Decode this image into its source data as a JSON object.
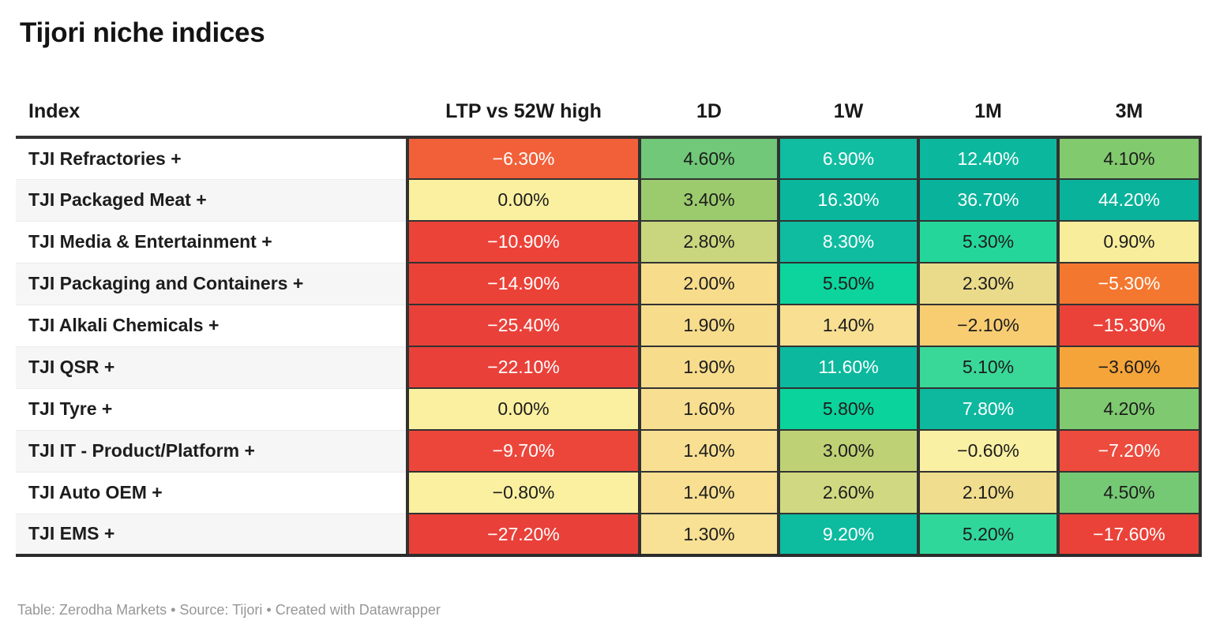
{
  "title": "Tijori niche indices",
  "table": {
    "columns": [
      {
        "label": "Index"
      },
      {
        "label": "LTP vs 52W high"
      },
      {
        "label": "1D"
      },
      {
        "label": "1W"
      },
      {
        "label": "1M"
      },
      {
        "label": "3M"
      }
    ],
    "rows": [
      {
        "label": "TJI Refractories +",
        "cells": [
          {
            "text": "−6.30%",
            "bg": "#f2603a",
            "fg": "#ffffff"
          },
          {
            "text": "4.60%",
            "bg": "#70c878",
            "fg": "#1c1c1c"
          },
          {
            "text": "6.90%",
            "bg": "#10bda1",
            "fg": "#ffffff"
          },
          {
            "text": "12.40%",
            "bg": "#0bb89d",
            "fg": "#ffffff"
          },
          {
            "text": "4.10%",
            "bg": "#82ca6e",
            "fg": "#1c1c1c"
          }
        ]
      },
      {
        "label": "TJI Packaged Meat +",
        "cells": [
          {
            "text": "0.00%",
            "bg": "#fbf0a0",
            "fg": "#1c1c1c"
          },
          {
            "text": "3.40%",
            "bg": "#9ccb6e",
            "fg": "#1c1c1c"
          },
          {
            "text": "16.30%",
            "bg": "#0ab69c",
            "fg": "#ffffff"
          },
          {
            "text": "36.70%",
            "bg": "#09b29a",
            "fg": "#ffffff"
          },
          {
            "text": "44.20%",
            "bg": "#09b29a",
            "fg": "#ffffff"
          }
        ]
      },
      {
        "label": "TJI Media & Entertainment +",
        "cells": [
          {
            "text": "−10.90%",
            "bg": "#ec4339",
            "fg": "#ffffff"
          },
          {
            "text": "2.80%",
            "bg": "#c9d67e",
            "fg": "#1c1c1c"
          },
          {
            "text": "8.30%",
            "bg": "#0fbca0",
            "fg": "#ffffff"
          },
          {
            "text": "5.30%",
            "bg": "#25d69b",
            "fg": "#1c1c1c"
          },
          {
            "text": "0.90%",
            "bg": "#f8ed9b",
            "fg": "#1c1c1c"
          }
        ]
      },
      {
        "label": "TJI Packaging and Containers +",
        "cells": [
          {
            "text": "−14.90%",
            "bg": "#eb4238",
            "fg": "#ffffff"
          },
          {
            "text": "2.00%",
            "bg": "#f7dc8c",
            "fg": "#1c1c1c"
          },
          {
            "text": "5.50%",
            "bg": "#0cd49c",
            "fg": "#1c1c1c"
          },
          {
            "text": "2.30%",
            "bg": "#eadb8b",
            "fg": "#1c1c1c"
          },
          {
            "text": "−5.30%",
            "bg": "#f4772f",
            "fg": "#ffffff"
          }
        ]
      },
      {
        "label": "TJI Alkali Chemicals +",
        "cells": [
          {
            "text": "−25.40%",
            "bg": "#e9413a",
            "fg": "#ffffff"
          },
          {
            "text": "1.90%",
            "bg": "#f7dc8c",
            "fg": "#1c1c1c"
          },
          {
            "text": "1.40%",
            "bg": "#f8df92",
            "fg": "#1c1c1c"
          },
          {
            "text": "−2.10%",
            "bg": "#f8cd72",
            "fg": "#1c1c1c"
          },
          {
            "text": "−15.30%",
            "bg": "#ea4239",
            "fg": "#ffffff"
          }
        ]
      },
      {
        "label": "TJI QSR +",
        "cells": [
          {
            "text": "−22.10%",
            "bg": "#e9413a",
            "fg": "#ffffff"
          },
          {
            "text": "1.90%",
            "bg": "#f7dc8c",
            "fg": "#1c1c1c"
          },
          {
            "text": "11.60%",
            "bg": "#0cb89e",
            "fg": "#ffffff"
          },
          {
            "text": "5.10%",
            "bg": "#3ad898",
            "fg": "#1c1c1c"
          },
          {
            "text": "−3.60%",
            "bg": "#f5a43a",
            "fg": "#1c1c1c"
          }
        ]
      },
      {
        "label": "TJI Tyre +",
        "cells": [
          {
            "text": "0.00%",
            "bg": "#fbf0a0",
            "fg": "#1c1c1c"
          },
          {
            "text": "1.60%",
            "bg": "#f8de90",
            "fg": "#1c1c1c"
          },
          {
            "text": "5.80%",
            "bg": "#0bd39c",
            "fg": "#1c1c1c"
          },
          {
            "text": "7.80%",
            "bg": "#0eb89e",
            "fg": "#ffffff"
          },
          {
            "text": "4.20%",
            "bg": "#7fca70",
            "fg": "#1c1c1c"
          }
        ]
      },
      {
        "label": "TJI IT - Product/Platform +",
        "cells": [
          {
            "text": "−9.70%",
            "bg": "#ec463b",
            "fg": "#ffffff"
          },
          {
            "text": "1.40%",
            "bg": "#f8df92",
            "fg": "#1c1c1c"
          },
          {
            "text": "3.00%",
            "bg": "#bed275",
            "fg": "#1c1c1c"
          },
          {
            "text": "−0.60%",
            "bg": "#faf0a3",
            "fg": "#1c1c1c"
          },
          {
            "text": "−7.20%",
            "bg": "#ed4b3d",
            "fg": "#ffffff"
          }
        ]
      },
      {
        "label": "TJI Auto OEM +",
        "cells": [
          {
            "text": "−0.80%",
            "bg": "#faf0a0",
            "fg": "#1c1c1c"
          },
          {
            "text": "1.40%",
            "bg": "#f8df92",
            "fg": "#1c1c1c"
          },
          {
            "text": "2.60%",
            "bg": "#d0d981",
            "fg": "#1c1c1c"
          },
          {
            "text": "2.10%",
            "bg": "#f0dd8d",
            "fg": "#1c1c1c"
          },
          {
            "text": "4.50%",
            "bg": "#76c974",
            "fg": "#1c1c1c"
          }
        ]
      },
      {
        "label": "TJI EMS +",
        "cells": [
          {
            "text": "−27.20%",
            "bg": "#e9413a",
            "fg": "#ffffff"
          },
          {
            "text": "1.30%",
            "bg": "#f8e094",
            "fg": "#1c1c1c"
          },
          {
            "text": "9.20%",
            "bg": "#0dbb9f",
            "fg": "#ffffff"
          },
          {
            "text": "5.20%",
            "bg": "#30d79a",
            "fg": "#1c1c1c"
          },
          {
            "text": "−17.60%",
            "bg": "#ea4239",
            "fg": "#ffffff"
          }
        ]
      }
    ]
  },
  "footer": {
    "text": "Table: Zerodha Markets • Source: Tijori • Created with Datawrapper"
  },
  "colors": {
    "positive_strong": "#09b29a",
    "positive_mid": "#70c878",
    "neutral": "#fbf0a0",
    "negative_mid": "#f5a43a",
    "negative_strong": "#e9413a",
    "grid_border": "#323232",
    "row_alt_bg": "#f6f6f6"
  },
  "chart_data": {
    "type": "table",
    "title": "Tijori niche indices",
    "columns": [
      "Index",
      "LTP vs 52W high",
      "1D",
      "1W",
      "1M",
      "3M"
    ],
    "rows": [
      [
        "TJI Refractories +",
        -6.3,
        4.6,
        6.9,
        12.4,
        4.1
      ],
      [
        "TJI Packaged Meat +",
        0.0,
        3.4,
        16.3,
        36.7,
        44.2
      ],
      [
        "TJI Media & Entertainment +",
        -10.9,
        2.8,
        8.3,
        5.3,
        0.9
      ],
      [
        "TJI Packaging and Containers +",
        -14.9,
        2.0,
        5.5,
        2.3,
        -5.3
      ],
      [
        "TJI Alkali Chemicals +",
        -25.4,
        1.9,
        1.4,
        -2.1,
        -15.3
      ],
      [
        "TJI QSR +",
        -22.1,
        1.9,
        11.6,
        5.1,
        -3.6
      ],
      [
        "TJI Tyre +",
        0.0,
        1.6,
        5.8,
        7.8,
        4.2
      ],
      [
        "TJI IT - Product/Platform +",
        -9.7,
        1.4,
        3.0,
        -0.6,
        -7.2
      ],
      [
        "TJI Auto OEM +",
        -0.8,
        1.4,
        2.6,
        2.1,
        4.5
      ],
      [
        "TJI EMS +",
        -27.2,
        1.3,
        9.2,
        5.2,
        -17.6
      ]
    ],
    "units": "percent",
    "color_scale": "diverging red→yellow→green→teal heatmap, saturating teal above ~6% and red below ~-8%",
    "legend": "none",
    "attribution": "Table: Zerodha Markets • Source: Tijori • Created with Datawrapper"
  }
}
